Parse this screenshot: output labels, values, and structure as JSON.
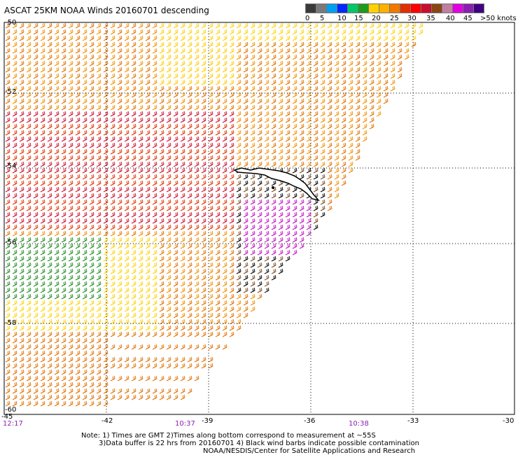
{
  "title": "ASCAT 25KM NOAA Winds 20160701 descending",
  "legend": {
    "colors": [
      "#3a3a3a",
      "#7a7a7a",
      "#00a0f0",
      "#0028ff",
      "#00c864",
      "#1e9a1e",
      "#ffd200",
      "#ffb000",
      "#f07800",
      "#e03000",
      "#ff0000",
      "#c8102e",
      "#8b4513",
      "#c080a0",
      "#e000e0",
      "#8a1fb0",
      "#400080"
    ],
    "labels": [
      "0",
      "5",
      "10",
      "15",
      "20",
      "25",
      "30",
      "35",
      "40",
      "45",
      ">50 knots"
    ]
  },
  "axes": {
    "lat_labels": [
      "-50",
      "-52",
      "-54",
      "-56",
      "-58",
      "-60"
    ],
    "lon_labels": [
      "-45",
      "-42",
      "-39",
      "-36",
      "-33",
      "-30"
    ]
  },
  "times": [
    "12:17",
    "10:37",
    "10:38"
  ],
  "notes": [
    "Note: 1) Times are GMT 2)Times along bottom correspond to measurement at ~55S",
    "3)Data buffer is 22 hrs from 20160701 4) Black wind barbs indicate possible contamination",
    "NOAA/NESDIS/Center for Satellite Applications and Research"
  ]
}
